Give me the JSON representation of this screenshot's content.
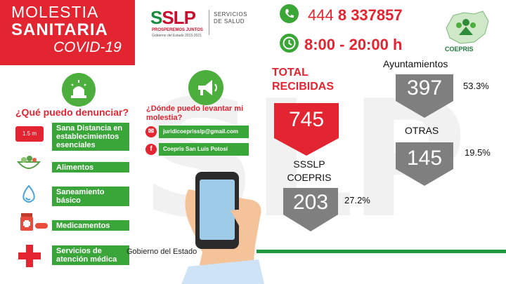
{
  "header": {
    "title_line1": "MOLESTIA",
    "title_line2": "SANITARIA",
    "title_line3": "COVID-19",
    "logo_mark": "SLP",
    "logo_tagline": "PROSPEREMOS JUNTOS",
    "logo_sub": "Gobierno del Estado 2015-2021",
    "logo_dept": "SERVICIOS DE SALUD",
    "phone_prefix": "444",
    "phone_number": "8 337857",
    "hours": "8:00 - 20:00 h",
    "coepris_label": "COEPRIS"
  },
  "left": {
    "question": "¿Qué puedo denunciar?",
    "items": [
      {
        "label": "Sana Distancia en establecimientos esenciales",
        "icon_text": "1.5 m"
      },
      {
        "label": "Alimentos"
      },
      {
        "label": "Saneamiento básico"
      },
      {
        "label": "Medicamentos"
      },
      {
        "label": "Servicios de atención médica"
      }
    ]
  },
  "middle": {
    "question": "¿Dónde puedo levantar mi molestia?",
    "email": "juridicoeprisslp@gmail.com",
    "facebook": "Coepris San Luis Potosí",
    "footer": "Gobierno del Estado"
  },
  "stats": {
    "total_label": "TOTAL RECIBIDAS",
    "total_value": "745",
    "ayuntamientos_label": "Ayuntamientos",
    "ayuntamientos_value": "397",
    "ayuntamientos_pct": "53.3%",
    "otras_label": "OTRAS",
    "otras_value": "145",
    "otras_pct": "19.5%",
    "ssslp_label": "SSSLP COEPRIS",
    "ssslp_value": "203",
    "ssslp_pct": "27.2%"
  },
  "colors": {
    "red": "#e32431",
    "green": "#3aa63a",
    "gray": "#7f7f7f"
  }
}
